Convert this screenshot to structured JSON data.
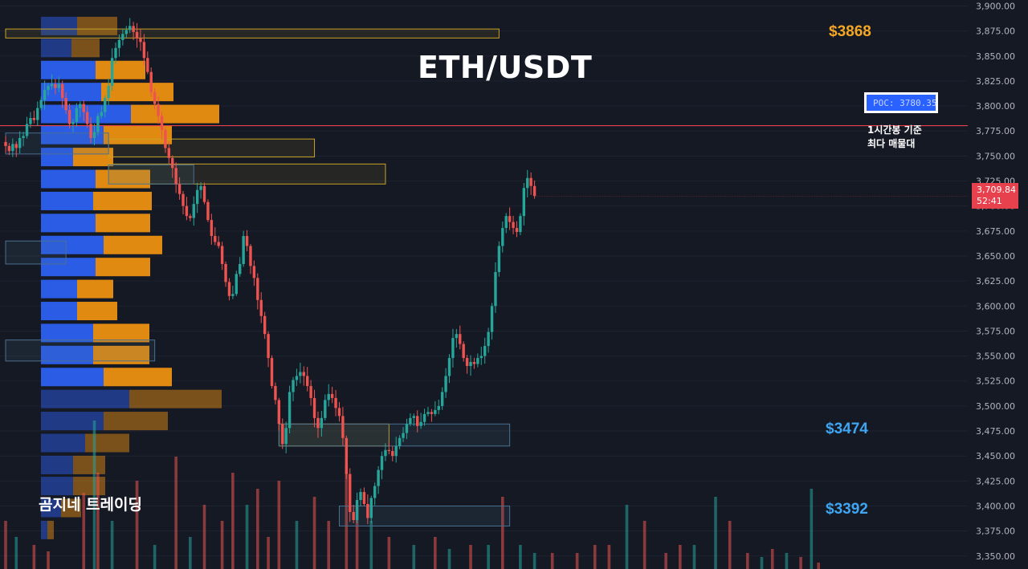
{
  "chart_data": {
    "type": "candlestick",
    "title": "ETH/USDT",
    "y_axis": {
      "min": 3337,
      "max": 3906,
      "tick_labels": [
        "3,900.00",
        "3,875.00",
        "3,850.00",
        "3,825.00",
        "3,800.00",
        "3,775.00",
        "3,750.00",
        "3,725.00",
        "3,700.00",
        "3,675.00",
        "3,650.00",
        "3,625.00",
        "3,600.00",
        "3,575.00",
        "3,550.00",
        "3,525.00",
        "3,500.00",
        "3,475.00",
        "3,450.00",
        "3,425.00",
        "3,400.00",
        "3,375.00",
        "3,350.00"
      ],
      "tick_values": [
        3900,
        3875,
        3850,
        3825,
        3800,
        3775,
        3750,
        3725,
        3700,
        3675,
        3650,
        3625,
        3600,
        3575,
        3550,
        3525,
        3500,
        3475,
        3450,
        3425,
        3400,
        3375,
        3350
      ]
    },
    "current_price": {
      "label": "3,709.84",
      "countdown": "52:41",
      "value": 3709.84
    },
    "poc": {
      "label": "POC: 3780.35",
      "value": 3780.35,
      "note_line1": "1시간봉 기준",
      "note_line2": "최다 매물대"
    },
    "levels": [
      {
        "label": "$3868",
        "value": 3868,
        "color": "#f5a623"
      },
      {
        "label": "$3474",
        "value": 3474,
        "color": "#3ea6f2"
      },
      {
        "label": "$3392",
        "value": 3392,
        "color": "#3ea6f2"
      }
    ],
    "zones": [
      {
        "from_candle": 0,
        "to_candle": 139,
        "top": 3877,
        "bottom": 3868,
        "style": "yellow"
      },
      {
        "from_candle": 29,
        "to_candle": 87,
        "top": 3767,
        "bottom": 3749,
        "style": "yellow"
      },
      {
        "from_candle": 0,
        "to_candle": 29,
        "top": 3773,
        "bottom": 3752,
        "style": "blue"
      },
      {
        "from_candle": 29,
        "to_candle": 107,
        "top": 3742,
        "bottom": 3722,
        "style": "yellow"
      },
      {
        "from_candle": 29,
        "to_candle": 53,
        "top": 3741,
        "bottom": 3722,
        "style": "blue"
      },
      {
        "from_candle": 0,
        "to_candle": 17,
        "top": 3665,
        "bottom": 3642,
        "style": "blue"
      },
      {
        "from_candle": 0,
        "to_candle": 42,
        "top": 3566,
        "bottom": 3545,
        "style": "blue"
      },
      {
        "from_candle": 77,
        "to_candle": 108,
        "top": 3482,
        "bottom": 3460,
        "style": "yellow"
      },
      {
        "from_candle": 77,
        "to_candle": 142,
        "top": 3482,
        "bottom": 3460,
        "style": "blue"
      },
      {
        "from_candle": 94,
        "to_candle": 142,
        "top": 3400,
        "bottom": 3380,
        "style": "blue"
      }
    ],
    "volume_profile": [
      {
        "price": 3880,
        "buy": 45,
        "sell": 50,
        "faded": true
      },
      {
        "price": 3858,
        "buy": 38,
        "sell": 35,
        "faded": true
      },
      {
        "price": 3836,
        "buy": 68,
        "sell": 62,
        "faded": false
      },
      {
        "price": 3814,
        "buy": 75,
        "sell": 90,
        "faded": false
      },
      {
        "price": 3792,
        "buy": 112,
        "sell": 110,
        "faded": false
      },
      {
        "price": 3771,
        "buy": 78,
        "sell": 85,
        "faded": false
      },
      {
        "price": 3749,
        "buy": 40,
        "sell": 50,
        "faded": false
      },
      {
        "price": 3727,
        "buy": 68,
        "sell": 68,
        "faded": false
      },
      {
        "price": 3705,
        "buy": 65,
        "sell": 73,
        "faded": false
      },
      {
        "price": 3683,
        "buy": 68,
        "sell": 68,
        "faded": false
      },
      {
        "price": 3661,
        "buy": 78,
        "sell": 73,
        "faded": false
      },
      {
        "price": 3639,
        "buy": 68,
        "sell": 68,
        "faded": false
      },
      {
        "price": 3617,
        "buy": 45,
        "sell": 45,
        "faded": false
      },
      {
        "price": 3595,
        "buy": 45,
        "sell": 50,
        "faded": false
      },
      {
        "price": 3573,
        "buy": 65,
        "sell": 70,
        "faded": false
      },
      {
        "price": 3551,
        "buy": 65,
        "sell": 70,
        "faded": false
      },
      {
        "price": 3529,
        "buy": 78,
        "sell": 85,
        "faded": false
      },
      {
        "price": 3507,
        "buy": 110,
        "sell": 115,
        "faded": true
      },
      {
        "price": 3485,
        "buy": 78,
        "sell": 80,
        "faded": true
      },
      {
        "price": 3463,
        "buy": 55,
        "sell": 55,
        "faded": true
      },
      {
        "price": 3441,
        "buy": 40,
        "sell": 40,
        "faded": true
      },
      {
        "price": 3420,
        "buy": 40,
        "sell": 40,
        "faded": true
      },
      {
        "price": 3398,
        "buy": 25,
        "sell": 25,
        "faded": true
      },
      {
        "price": 3376,
        "buy": 8,
        "sell": 8,
        "faded": true
      }
    ],
    "close_path": [
      3760,
      3755,
      3762,
      3758,
      3768,
      3770,
      3782,
      3788,
      3786,
      3798,
      3806,
      3816,
      3820,
      3822,
      3818,
      3822,
      3808,
      3796,
      3782,
      3784,
      3798,
      3802,
      3794,
      3782,
      3768,
      3774,
      3790,
      3794,
      3808,
      3820,
      3848,
      3858,
      3866,
      3872,
      3876,
      3880,
      3874,
      3868,
      3864,
      3848,
      3834,
      3814,
      3802,
      3790,
      3776,
      3758,
      3748,
      3738,
      3722,
      3712,
      3700,
      3690,
      3688,
      3702,
      3716,
      3720,
      3704,
      3686,
      3670,
      3664,
      3660,
      3642,
      3624,
      3610,
      3612,
      3632,
      3642,
      3670,
      3660,
      3640,
      3628,
      3606,
      3590,
      3572,
      3548,
      3520,
      3506,
      3482,
      3462,
      3478,
      3514,
      3526,
      3530,
      3534,
      3530,
      3520,
      3508,
      3488,
      3478,
      3488,
      3506,
      3512,
      3508,
      3498,
      3490,
      3468,
      3432,
      3394,
      3386,
      3406,
      3414,
      3402,
      3388,
      3408,
      3420,
      3436,
      3450,
      3456,
      3455,
      3450,
      3460,
      3468,
      3473,
      3482,
      3488,
      3490,
      3480,
      3484,
      3492,
      3494,
      3492,
      3496,
      3500,
      3514,
      3530,
      3548,
      3568,
      3572,
      3562,
      3548,
      3540,
      3544,
      3542,
      3548,
      3550,
      3560,
      3574,
      3600,
      3634,
      3660,
      3678,
      3690,
      3684,
      3678,
      3674,
      3690,
      3718,
      3728,
      3720,
      3710
    ],
    "volume_bars": [
      {
        "candle": 0,
        "value": 60,
        "up": false
      },
      {
        "candle": 3,
        "value": 40,
        "up": true
      },
      {
        "candle": 8,
        "value": 30,
        "up": false
      },
      {
        "candle": 12,
        "value": 22,
        "up": false
      },
      {
        "candle": 22,
        "value": 95,
        "up": false
      },
      {
        "candle": 25,
        "value": 185,
        "up": true
      },
      {
        "candle": 26,
        "value": 120,
        "up": false
      },
      {
        "candle": 30,
        "value": 60,
        "up": true
      },
      {
        "candle": 37,
        "value": 110,
        "up": false
      },
      {
        "candle": 42,
        "value": 30,
        "up": true
      },
      {
        "candle": 48,
        "value": 140,
        "up": false
      },
      {
        "candle": 52,
        "value": 40,
        "up": true
      },
      {
        "candle": 56,
        "value": 80,
        "up": false
      },
      {
        "candle": 61,
        "value": 60,
        "up": false
      },
      {
        "candle": 64,
        "value": 120,
        "up": false
      },
      {
        "candle": 68,
        "value": 80,
        "up": true
      },
      {
        "candle": 71,
        "value": 100,
        "up": false
      },
      {
        "candle": 74,
        "value": 40,
        "up": false
      },
      {
        "candle": 77,
        "value": 110,
        "up": false
      },
      {
        "candle": 82,
        "value": 60,
        "up": true
      },
      {
        "candle": 87,
        "value": 90,
        "up": false
      },
      {
        "candle": 91,
        "value": 60,
        "up": false
      },
      {
        "candle": 96,
        "value": 130,
        "up": false
      },
      {
        "candle": 99,
        "value": 80,
        "up": false
      },
      {
        "candle": 103,
        "value": 60,
        "up": true
      },
      {
        "candle": 108,
        "value": 40,
        "up": false
      },
      {
        "candle": 115,
        "value": 30,
        "up": true
      },
      {
        "candle": 121,
        "value": 40,
        "up": false
      },
      {
        "candle": 125,
        "value": 25,
        "up": true
      },
      {
        "candle": 131,
        "value": 30,
        "up": false
      },
      {
        "candle": 136,
        "value": 30,
        "up": true
      },
      {
        "candle": 140,
        "value": 90,
        "up": false
      },
      {
        "candle": 145,
        "value": 30,
        "up": true
      },
      {
        "candle": 149,
        "value": 20,
        "up": true
      },
      {
        "candle": 154,
        "value": 20,
        "up": false
      },
      {
        "candle": 161,
        "value": 20,
        "up": false
      },
      {
        "candle": 166,
        "value": 30,
        "up": false
      },
      {
        "candle": 170,
        "value": 30,
        "up": false
      },
      {
        "candle": 175,
        "value": 80,
        "up": true
      },
      {
        "candle": 180,
        "value": 60,
        "up": false
      },
      {
        "candle": 186,
        "value": 20,
        "up": false
      },
      {
        "candle": 190,
        "value": 30,
        "up": false
      },
      {
        "candle": 194,
        "value": 30,
        "up": true
      },
      {
        "candle": 200,
        "value": 90,
        "up": true
      },
      {
        "candle": 204,
        "value": 60,
        "up": false
      },
      {
        "candle": 209,
        "value": 20,
        "up": false
      },
      {
        "candle": 213,
        "value": 15,
        "up": true
      },
      {
        "candle": 216,
        "value": 25,
        "up": false
      },
      {
        "candle": 220,
        "value": 20,
        "up": true
      },
      {
        "candle": 224,
        "value": 15,
        "up": false
      },
      {
        "candle": 227,
        "value": 100,
        "up": true
      },
      {
        "candle": 229,
        "value": 8,
        "up": false
      }
    ],
    "colors": {
      "up": "#26a69a",
      "down": "#ef5350",
      "poc_line": "#e8414e",
      "profile_buy": "#2b5ce6",
      "profile_sell": "#e08a12",
      "yellow_zone": "#c9a227",
      "blue_zone": "#4a7090"
    }
  },
  "texts": {
    "watermark": "곰지네 트레이딩"
  }
}
